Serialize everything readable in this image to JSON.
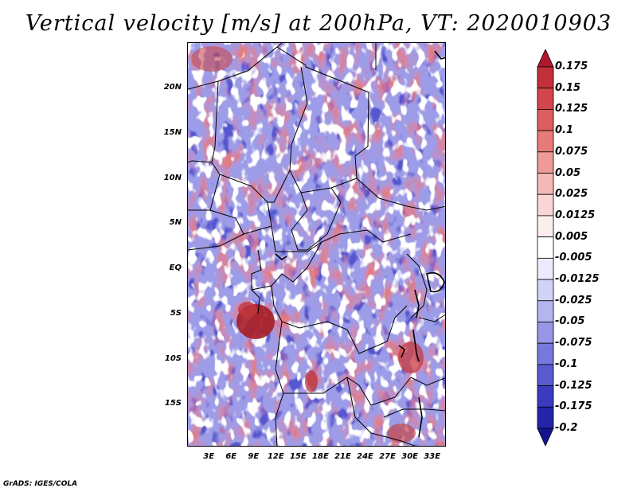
{
  "title": "Vertical velocity [m/s] at 200hPa, VT: 2020010903",
  "footer": "GrADS: IGES/COLA",
  "map": {
    "lat_labels": [
      "20N",
      "15N",
      "10N",
      "5N",
      "EQ",
      "5S",
      "10S",
      "15S"
    ],
    "lon_labels": [
      "3E",
      "6E",
      "9E",
      "12E",
      "15E",
      "18E",
      "21E",
      "24E",
      "27E",
      "30E",
      "33E"
    ],
    "lat_values": [
      20,
      15,
      10,
      5,
      0,
      -5,
      -10,
      -15
    ],
    "lon_values": [
      3,
      6,
      9,
      12,
      15,
      18,
      21,
      24,
      27,
      30,
      33
    ]
  },
  "colorbar": {
    "labels": [
      "0.175",
      "0.15",
      "0.125",
      "0.1",
      "0.075",
      "0.05",
      "0.025",
      "0.0125",
      "0.005",
      "-0.005",
      "-0.0125",
      "-0.025",
      "-0.05",
      "-0.075",
      "-0.1",
      "-0.125",
      "-0.175",
      "-0.2"
    ],
    "colors": [
      "#b2182b",
      "#c4303a",
      "#d2464b",
      "#dd5e5e",
      "#e67b7a",
      "#ee9a98",
      "#f4b8b6",
      "#f9d6d4",
      "#fdeeee",
      "#ffffff",
      "#ebebfb",
      "#d2d2f6",
      "#b4b4ef",
      "#9696e6",
      "#7777dc",
      "#5a5ad0",
      "#3b3bc0",
      "#2424a8",
      "#141490"
    ]
  }
}
